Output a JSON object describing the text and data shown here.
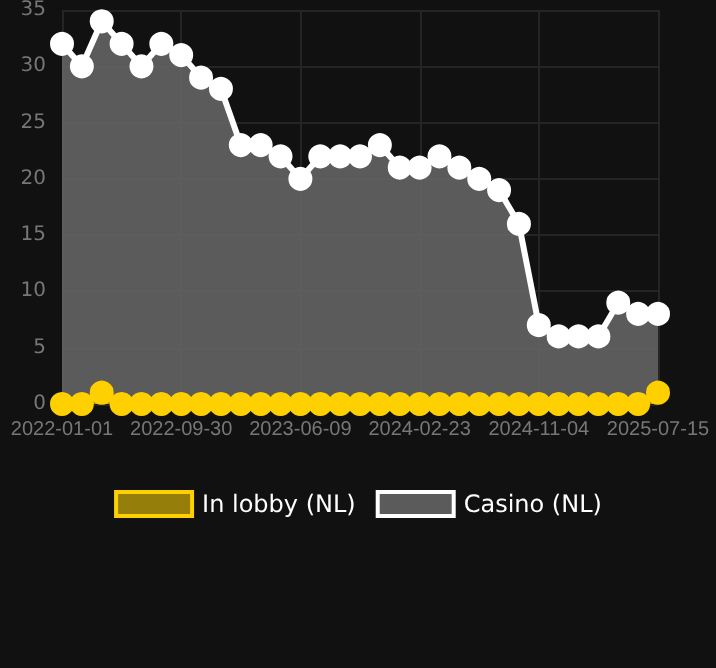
{
  "chart_data": {
    "type": "area",
    "categories": [
      "2022-01-01",
      null,
      null,
      null,
      null,
      null,
      "2022-09-30",
      null,
      null,
      null,
      null,
      null,
      "2023-06-09",
      null,
      null,
      null,
      null,
      null,
      "2024-02-23",
      null,
      null,
      null,
      null,
      null,
      "2024-11-04",
      null,
      null,
      null,
      null,
      null,
      "2025-07-15"
    ],
    "series": [
      {
        "name": "In lobby (NL)",
        "color": "#ffd000",
        "values": [
          0,
          0,
          1,
          0,
          0,
          0,
          0,
          0,
          0,
          0,
          0,
          0,
          0,
          0,
          0,
          0,
          0,
          0,
          0,
          0,
          0,
          0,
          0,
          0,
          0,
          0,
          0,
          0,
          0,
          0,
          1
        ]
      },
      {
        "name": "Casino (NL)",
        "color": "#ffffff",
        "values": [
          32,
          30,
          34,
          32,
          30,
          32,
          31,
          29,
          28,
          23,
          23,
          22,
          20,
          22,
          22,
          22,
          23,
          21,
          21,
          22,
          21,
          20,
          19,
          16,
          7,
          6,
          6,
          6,
          9,
          8,
          8
        ]
      }
    ],
    "ylim": [
      0,
      35
    ],
    "yticks": [
      0,
      5,
      10,
      15,
      20,
      25,
      30,
      35
    ],
    "grid": true,
    "legend": "bottom",
    "marker": "circle",
    "line_style": "solid"
  }
}
